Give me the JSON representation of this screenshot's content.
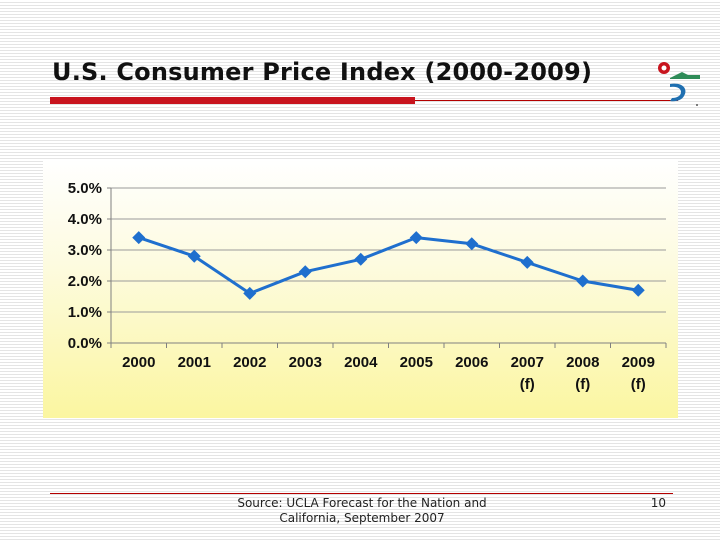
{
  "slide": {
    "title": "U.S. Consumer Price Index (2000-2009)",
    "footer": {
      "source_line1": "Source: UCLA Forecast for the Nation and",
      "source_line2": "California, September 2007",
      "page_number": "10"
    }
  },
  "colors": {
    "accent_red": "#c8141e",
    "series_blue": "#1f6fce",
    "logo_green": "#2e8b57",
    "logo_blue": "#1f6fb0"
  },
  "chart_data": {
    "type": "line",
    "categories": [
      [
        "2000"
      ],
      [
        "2001"
      ],
      [
        "2002"
      ],
      [
        "2003"
      ],
      [
        "2004"
      ],
      [
        "2005"
      ],
      [
        "2006"
      ],
      [
        "2007",
        "(f)"
      ],
      [
        "2008",
        "(f)"
      ],
      [
        "2009",
        "(f)"
      ]
    ],
    "series": [
      {
        "values": [
          3.4,
          2.8,
          1.6,
          2.3,
          2.7,
          3.4,
          3.2,
          2.6,
          2.0,
          1.7
        ]
      }
    ],
    "y_ticks": [
      "0.0%",
      "1.0%",
      "2.0%",
      "3.0%",
      "4.0%",
      "5.0%"
    ],
    "ylim": [
      0,
      5
    ],
    "marker": "diamond",
    "grid": true,
    "legend": "none"
  }
}
